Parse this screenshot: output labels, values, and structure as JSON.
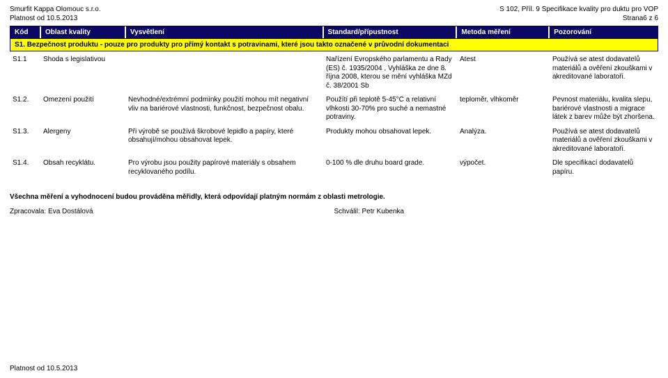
{
  "header": {
    "companyLine1": "Smurfit Kappa Olomouc s.r.o.",
    "companyLine2": "Platnost od 10.5.2013",
    "specLine1": "S 102, Příl. 9 Specifikace kvality pro duktu pro VOP",
    "specLine2": "Strana6 z 6"
  },
  "columns": {
    "kod": "Kód",
    "oblast": "Oblast kvality",
    "vysv": "Vysvětlení",
    "std": "Standard/přípustnost",
    "met": "Metoda měření",
    "poz": "Pozorování"
  },
  "section": "S1. Bezpečnost produktu - pouze pro produkty pro přímý kontakt s potravinami, které jsou takto označené v průvodní dokumentaci",
  "rows": [
    {
      "kod": "S1.1",
      "oblast": "Shoda s legislativou",
      "vysv": "",
      "std": "Nařízení Evropského parlamentu a Rady (ES) č. 1935/2004 ,  Vyhláška ze dne 8. října 2008, kterou se mění vyhláška MZd č. 38/2001 Sb",
      "met": "Atest",
      "poz": "Používá se atest dodavatelů materiálů a ověření zkouškami v akreditované laboratoři."
    },
    {
      "kod": "S1.2.",
      "oblast": "Omezení použití",
      "vysv": "Nevhodné/extrémní podmínky použití mohou mít negativní vliv na bariérové vlastnosti, funkčnost, bezpečnost obalu.",
      "std": "Použítí při teplotě 5-45°C a relativní vlhkosti 30-70% pro suché a nemastné potraviny.",
      "met": "teploměr, vlhkoměr",
      "poz": "Pevnost materiálu, kvalita slepu, bariérové vlastnosti a migrace látek z barev může být zhoršena."
    },
    {
      "kod": "S1.3.",
      "oblast": "Alergeny",
      "vysv": "Při výrobě se používá škrobové lepidlo a papíry, které obsahují/mohou obsahovat lepek.",
      "std": "Produkty mohou obsahovat lepek.",
      "met": "Analýza.",
      "poz": "Používá se atest dodavatelů materiálů a ověření zkouškami v akreditované laboratoři."
    },
    {
      "kod": "S1.4.",
      "oblast": "Obsah recyklátu.",
      "vysv": "Pro výrobu jsou použity papírové materiály s obsahem recyklovaného podílu.",
      "std": "0-100 % dle druhu board grade.",
      "met": "výpočet.",
      "poz": "Dle specifikací dodavatelů papíru."
    }
  ],
  "note": "Všechna měření a vyhodnocení budou prováděna měřidly, která odpovídají platným normám z oblasti metrologie.",
  "signatures": {
    "left": "Zpracovala: Eva Dostálová",
    "right": "Schválil: Petr Kubenka"
  },
  "footer": "Platnost od 10.5.2013",
  "style": {
    "navy": "#0a0862",
    "yellow": "#ffff00",
    "white": "#ffffff",
    "text": "#000000",
    "font_size_pt": 10,
    "colWidths": {
      "kod": 44,
      "oblast": 122,
      "vysv": 284,
      "std": 192,
      "met": 133,
      "poz": 155
    }
  }
}
